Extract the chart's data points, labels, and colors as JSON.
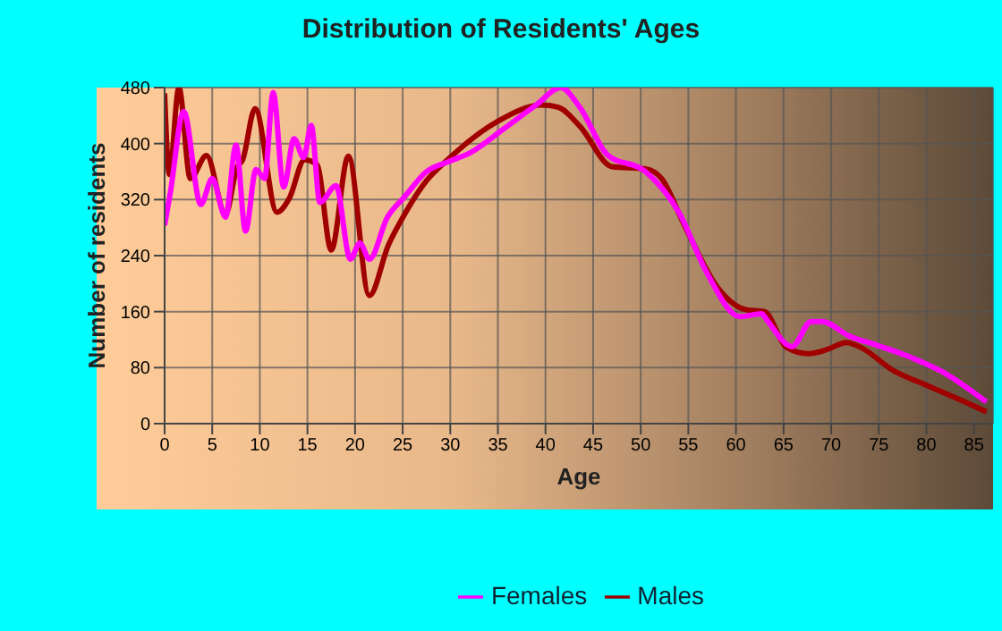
{
  "chart_data": {
    "type": "line",
    "title": "Distribution of Residents' Ages",
    "xlabel": "Age",
    "ylabel": "Number of residents",
    "xlim": [
      0,
      87
    ],
    "xticks": [
      0,
      5,
      10,
      15,
      20,
      25,
      30,
      35,
      40,
      45,
      50,
      55,
      60,
      65,
      70,
      75,
      80,
      85
    ],
    "ylim": [
      0,
      480
    ],
    "yticks": [
      0,
      80,
      160,
      240,
      320,
      400,
      480
    ],
    "grid": true,
    "legend": "bottom",
    "series": [
      {
        "name": "Males",
        "color": "#a00000",
        "x": [
          0,
          0.5,
          1.5,
          2.7,
          4.4,
          6.4,
          7.6,
          8.2,
          9.5,
          11.8,
          13.1,
          14.7,
          16,
          17.5,
          19.3,
          21.5,
          23.5,
          25.2,
          27.5,
          29.8,
          35,
          39.6,
          41.3,
          43.6,
          47,
          50.5,
          52.2,
          54.6,
          58.1,
          61,
          63,
          65.3,
          67.6,
          69.6,
          71.6,
          73.1,
          76.5,
          80,
          82.9,
          86.3
        ],
        "values": [
          472,
          356,
          480,
          350,
          383,
          299,
          366,
          377,
          450,
          302,
          322,
          377,
          370,
          248,
          382,
          183,
          255,
          299,
          347,
          378,
          432,
          455,
          452,
          425,
          367,
          364,
          350,
          283,
          194,
          163,
          160,
          109,
          100,
          106,
          116,
          109,
          76,
          55,
          38,
          17
        ]
      },
      {
        "name": "Females",
        "color": "#ff00ff",
        "x": [
          0,
          0.6,
          2,
          3.8,
          5,
          6.4,
          7.5,
          8.5,
          9.6,
          10.5,
          11.4,
          12.5,
          13.6,
          14.6,
          15.4,
          16.3,
          18,
          19.5,
          20.5,
          21.5,
          23.4,
          25.2,
          27.5,
          29.8,
          32.1,
          35.6,
          39,
          41.6,
          43.6,
          46.5,
          50.5,
          54,
          57,
          60.4,
          62.7,
          63.3,
          65.9,
          67.9,
          69,
          71.9,
          74.8,
          78.3,
          81.7,
          86.3
        ],
        "values": [
          283,
          330,
          446,
          313,
          350,
          295,
          398,
          275,
          363,
          350,
          473,
          338,
          407,
          380,
          426,
          316,
          340,
          235,
          258,
          235,
          295,
          324,
          360,
          374,
          387,
          421,
          455,
          480,
          452,
          384,
          360,
          302,
          214,
          153,
          157,
          147,
          110,
          146,
          146,
          125,
          112,
          95,
          74,
          31
        ]
      }
    ]
  }
}
